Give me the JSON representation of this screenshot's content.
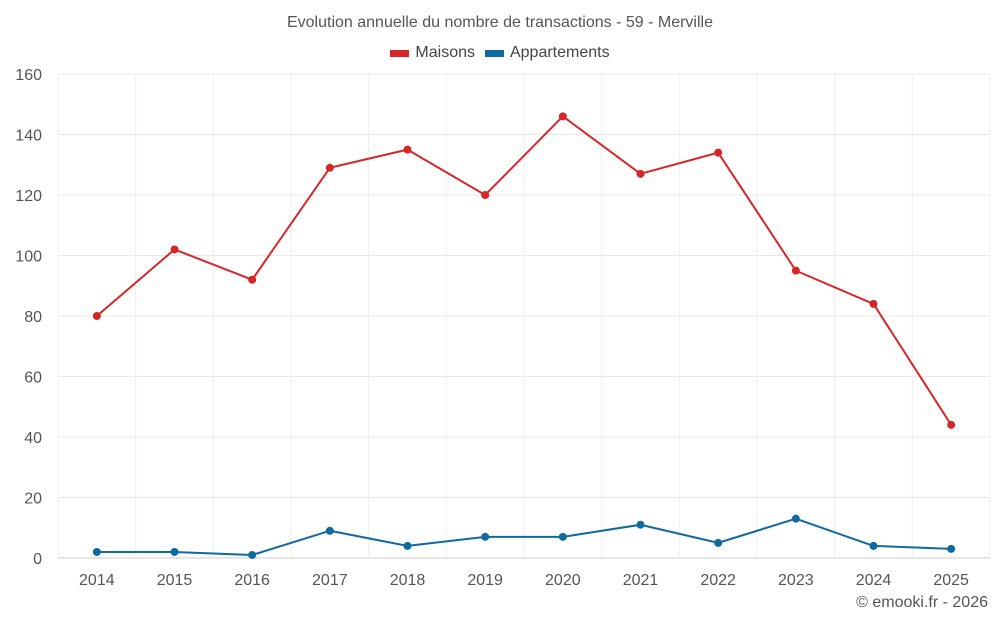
{
  "chart_data": {
    "type": "line",
    "title": "Evolution annuelle du nombre de transactions - 59 - Merville",
    "categories": [
      "2014",
      "2015",
      "2016",
      "2017",
      "2018",
      "2019",
      "2020",
      "2021",
      "2022",
      "2023",
      "2024",
      "2025"
    ],
    "series": [
      {
        "name": "Maisons",
        "color": "#d62728",
        "values": [
          80,
          102,
          92,
          129,
          135,
          120,
          146,
          127,
          134,
          95,
          84,
          44
        ]
      },
      {
        "name": "Appartements",
        "color": "#0f6aa0",
        "values": [
          2,
          2,
          1,
          9,
          4,
          7,
          7,
          11,
          5,
          13,
          4,
          3
        ]
      }
    ],
    "ylim": [
      0,
      160
    ],
    "yticks": [
      0,
      20,
      40,
      60,
      80,
      100,
      120,
      140,
      160
    ],
    "xlabel": "",
    "ylabel": "",
    "grid": true,
    "legend_position": "top-center"
  },
  "credit": "© emooki.fr - 2026"
}
